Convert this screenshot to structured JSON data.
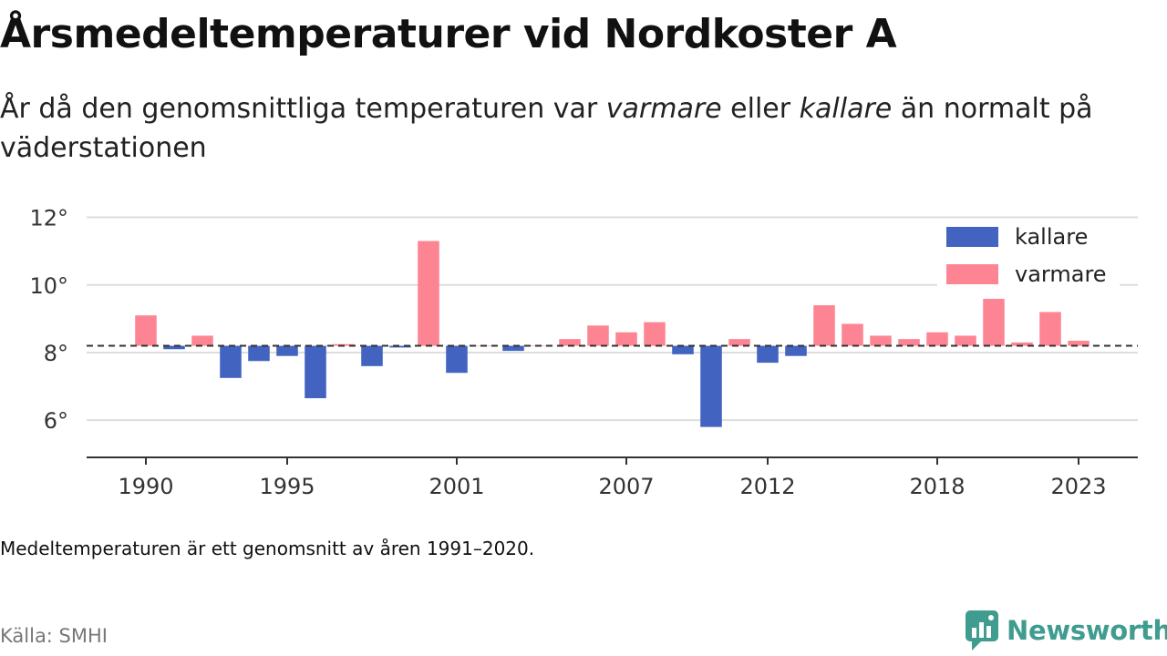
{
  "title": "Årsmedeltemperaturer vid Nordkoster A",
  "subtitle": {
    "part1": "År då den genomsnittliga temperaturen var ",
    "em1": "varmare",
    "part2": " eller ",
    "em2": "kallare",
    "part3": " än normalt på väderstationen"
  },
  "note": "Medeltemperaturen är ett genomsnitt av åren 1991–2020.",
  "source": "Källa: SMHI",
  "brand": "Newsworthy",
  "colors": {
    "kallare": "#4263c0",
    "varmare": "#fd8593",
    "grid": "#dddddd",
    "axis": "#333333"
  },
  "chart_data": {
    "type": "bar",
    "baseline": 8.2,
    "ylim": [
      4.9,
      12.5
    ],
    "yticks": [
      6,
      8,
      10,
      12
    ],
    "ytick_labels": [
      "6°",
      "8°",
      "10°",
      "12°"
    ],
    "xticks": [
      1990,
      1995,
      2001,
      2007,
      2012,
      2018,
      2023
    ],
    "xtick_labels": [
      "1990",
      "1995",
      "2001",
      "2007",
      "2012",
      "2018",
      "2023"
    ],
    "legend": {
      "position": "top-right",
      "items": [
        {
          "key": "kallare",
          "label": "kallare"
        },
        {
          "key": "varmare",
          "label": "varmare"
        }
      ]
    },
    "years": [
      1990,
      1991,
      1992,
      1993,
      1994,
      1995,
      1996,
      1997,
      1998,
      1999,
      2000,
      2001,
      2002,
      2003,
      2004,
      2005,
      2006,
      2007,
      2008,
      2009,
      2010,
      2011,
      2012,
      2013,
      2014,
      2015,
      2016,
      2017,
      2018,
      2019,
      2020,
      2021,
      2022,
      2023
    ],
    "values": [
      9.1,
      8.1,
      8.5,
      7.25,
      7.75,
      7.9,
      6.65,
      8.25,
      7.6,
      8.15,
      11.3,
      7.4,
      8.2,
      8.05,
      8.2,
      8.4,
      8.8,
      8.6,
      8.9,
      7.95,
      5.8,
      8.4,
      7.7,
      7.9,
      9.4,
      8.85,
      8.5,
      8.4,
      8.6,
      8.5,
      9.8,
      8.3,
      9.2,
      8.35
    ]
  }
}
